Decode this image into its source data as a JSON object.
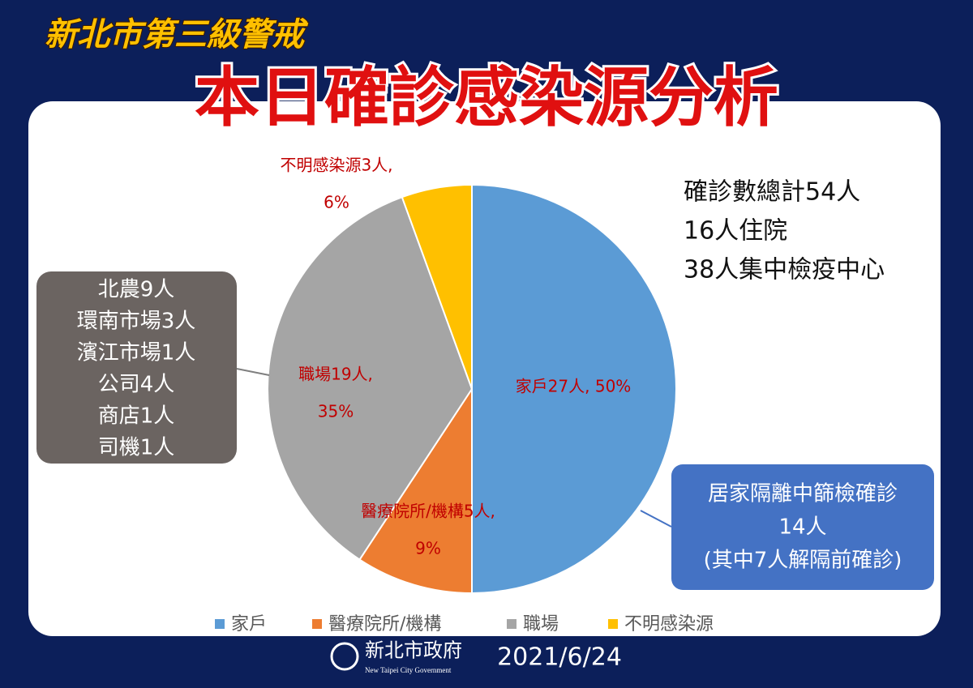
{
  "header": "新北市第三級警戒",
  "chart_data": {
    "type": "pie",
    "title": "本日確診感染源分析",
    "categories": [
      "家戶",
      "醫療院所/機構",
      "職場",
      "不明感染源"
    ],
    "values": [
      27,
      5,
      19,
      3
    ],
    "value_labels": [
      [
        "家戶27人, 50%"
      ],
      [
        "醫療院所/機構5人,",
        "9%"
      ],
      [
        "職場19人,",
        "35%"
      ],
      [
        "不明感染源3人,",
        "6%"
      ]
    ],
    "colors": [
      "#5b9bd5",
      "#ed7d31",
      "#a5a5a5",
      "#ffc000"
    ],
    "legend": "bottom"
  },
  "summary": [
    "確診數總計54人",
    "16人住院",
    "38人集中檢疫中心"
  ],
  "workplace_note": [
    "北農9人",
    "環南市場3人",
    "濱江市場1人",
    "公司4人",
    "商店1人",
    "司機1人"
  ],
  "home_note": [
    "居家隔離中篩檢確診",
    "14人",
    "(其中7人解隔前確診)"
  ],
  "footer": {
    "org": "新北市政府",
    "org_en": "New Taipei City Government",
    "date": "2021/6/24"
  }
}
